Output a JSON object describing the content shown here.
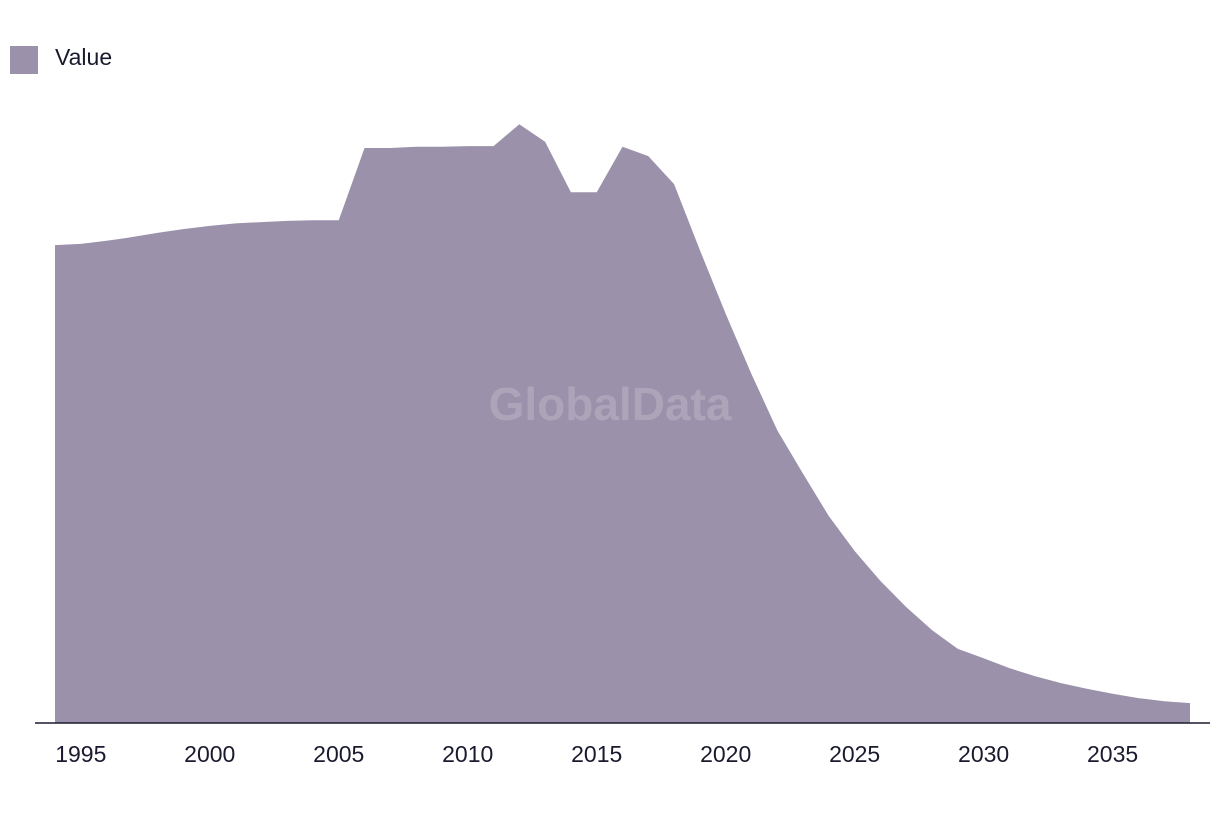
{
  "chart_data": {
    "type": "area",
    "watermark": "GlobalData",
    "x": [
      1994,
      1995,
      1996,
      1997,
      1998,
      1999,
      2000,
      2001,
      2002,
      2003,
      2004,
      2005,
      2006,
      2007,
      2008,
      2009,
      2010,
      2011,
      2012,
      2013,
      2014,
      2015,
      2016,
      2017,
      2018,
      2019,
      2020,
      2021,
      2022,
      2023,
      2024,
      2025,
      2026,
      2027,
      2028,
      2029,
      2030,
      2031,
      2032,
      2033,
      2034,
      2035,
      2036,
      2037,
      2038
    ],
    "series": [
      {
        "name": "Value",
        "color": "#9b91aa",
        "values": [
          76.7,
          76.9,
          77.4,
          78.0,
          78.7,
          79.3,
          79.8,
          80.2,
          80.4,
          80.6,
          80.7,
          80.7,
          92.3,
          92.3,
          92.5,
          92.5,
          92.6,
          92.6,
          96.1,
          93.3,
          85.2,
          85.2,
          92.5,
          91.0,
          86.5,
          75.9,
          65.7,
          56.0,
          47.0,
          40.0,
          33.2,
          27.6,
          22.8,
          18.6,
          14.9,
          11.9,
          10.4,
          8.8,
          7.5,
          6.4,
          5.5,
          4.7,
          4.0,
          3.5,
          3.2
        ]
      }
    ],
    "xlim": [
      1994,
      2038
    ],
    "xticks": [
      1995,
      2000,
      2005,
      2010,
      2015,
      2020,
      2025,
      2030,
      2035
    ],
    "ylim": [
      0,
      100
    ],
    "legend": "top-left"
  }
}
